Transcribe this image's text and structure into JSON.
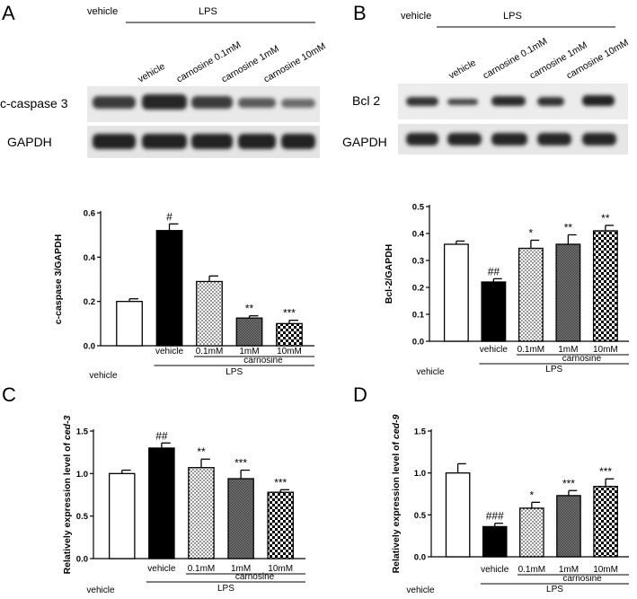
{
  "figure": {
    "panel_letters": [
      "A",
      "B",
      "C",
      "D"
    ],
    "blot_A": {
      "top_left": "vehicle",
      "top_group": "LPS",
      "lanes": [
        "vehicle",
        "carnosine 0.1mM",
        "carnosine 1mM",
        "carnosine 10mM"
      ],
      "row_labels": [
        "c-caspase 3",
        "GAPDH"
      ]
    },
    "blot_B": {
      "top_left": "vehicle",
      "top_group": "LPS",
      "lanes": [
        "vehicle",
        "carnosine 0.1mM",
        "carnosine 1mM",
        "carnosine 10mM"
      ],
      "row_labels": [
        "Bcl 2",
        "GAPDH"
      ]
    },
    "group_labels": {
      "vehicle": "vehicle",
      "lps": "LPS",
      "carnosine": "carnosine",
      "conc": [
        "0.1mM",
        "1mM",
        "10mM"
      ]
    },
    "colors": {
      "bar_stroke": "#000000",
      "ink": "#000000",
      "blot_bg": "#e8e8e8",
      "band": "#2a2a2a"
    }
  },
  "chart_data": [
    {
      "panel": "A",
      "type": "bar",
      "categories": [
        "vehicle",
        "LPS vehicle",
        "LPS carnosine 0.1mM",
        "LPS carnosine 1mM",
        "LPS carnosine 10mM"
      ],
      "values": [
        0.2,
        0.52,
        0.29,
        0.125,
        0.1
      ],
      "errors": [
        0.012,
        0.03,
        0.025,
        0.01,
        0.015
      ],
      "annotations": [
        "",
        "#",
        "",
        "**",
        "***"
      ],
      "fills": [
        "white",
        "black",
        "dots",
        "hatch",
        "checker"
      ],
      "ylabel": "c-caspase 3/GAPDH",
      "yticks": [
        "0.0",
        "0.2",
        "0.4",
        "0.6"
      ],
      "ylim": [
        0,
        0.6
      ]
    },
    {
      "panel": "B",
      "type": "bar",
      "categories": [
        "vehicle",
        "LPS vehicle",
        "LPS carnosine 0.1mM",
        "LPS carnosine 1mM",
        "LPS carnosine 10mM"
      ],
      "values": [
        0.36,
        0.22,
        0.345,
        0.36,
        0.41
      ],
      "errors": [
        0.012,
        0.012,
        0.03,
        0.035,
        0.02
      ],
      "annotations": [
        "",
        "##",
        "*",
        "**",
        "**"
      ],
      "fills": [
        "white",
        "black",
        "dots",
        "hatch",
        "checker"
      ],
      "ylabel": "Bcl-2/GAPDH",
      "yticks": [
        "0.0",
        "0.1",
        "0.2",
        "0.3",
        "0.4",
        "0.5"
      ],
      "ylim": [
        0,
        0.5
      ]
    },
    {
      "panel": "C",
      "type": "bar",
      "categories": [
        "vehicle",
        "LPS vehicle",
        "LPS carnosine 0.1mM",
        "LPS carnosine 1mM",
        "LPS carnosine 10mM"
      ],
      "values": [
        1.0,
        1.3,
        1.07,
        0.94,
        0.78
      ],
      "errors": [
        0.04,
        0.06,
        0.1,
        0.1,
        0.03
      ],
      "annotations": [
        "",
        "##",
        "**",
        "***",
        "***"
      ],
      "fills": [
        "white",
        "black",
        "dots",
        "hatch",
        "checker"
      ],
      "ylabel": "Relatively expression level of ced-3",
      "yticks": [
        "0.0",
        "0.5",
        "1.0",
        "1.5"
      ],
      "ylim": [
        0,
        1.5
      ]
    },
    {
      "panel": "D",
      "type": "bar",
      "categories": [
        "vehicle",
        "LPS vehicle",
        "LPS carnosine 0.1mM",
        "LPS carnosine 1mM",
        "LPS carnosine 10mM"
      ],
      "values": [
        1.0,
        0.36,
        0.58,
        0.73,
        0.84
      ],
      "errors": [
        0.11,
        0.04,
        0.07,
        0.06,
        0.09
      ],
      "annotations": [
        "",
        "###",
        "*",
        "***",
        "***"
      ],
      "fills": [
        "white",
        "black",
        "dots",
        "hatch",
        "checker"
      ],
      "ylabel": "Relatively expression level of ced-9",
      "yticks": [
        "0.0",
        "0.5",
        "1.0",
        "1.5"
      ],
      "ylim": [
        0,
        1.5
      ]
    }
  ]
}
